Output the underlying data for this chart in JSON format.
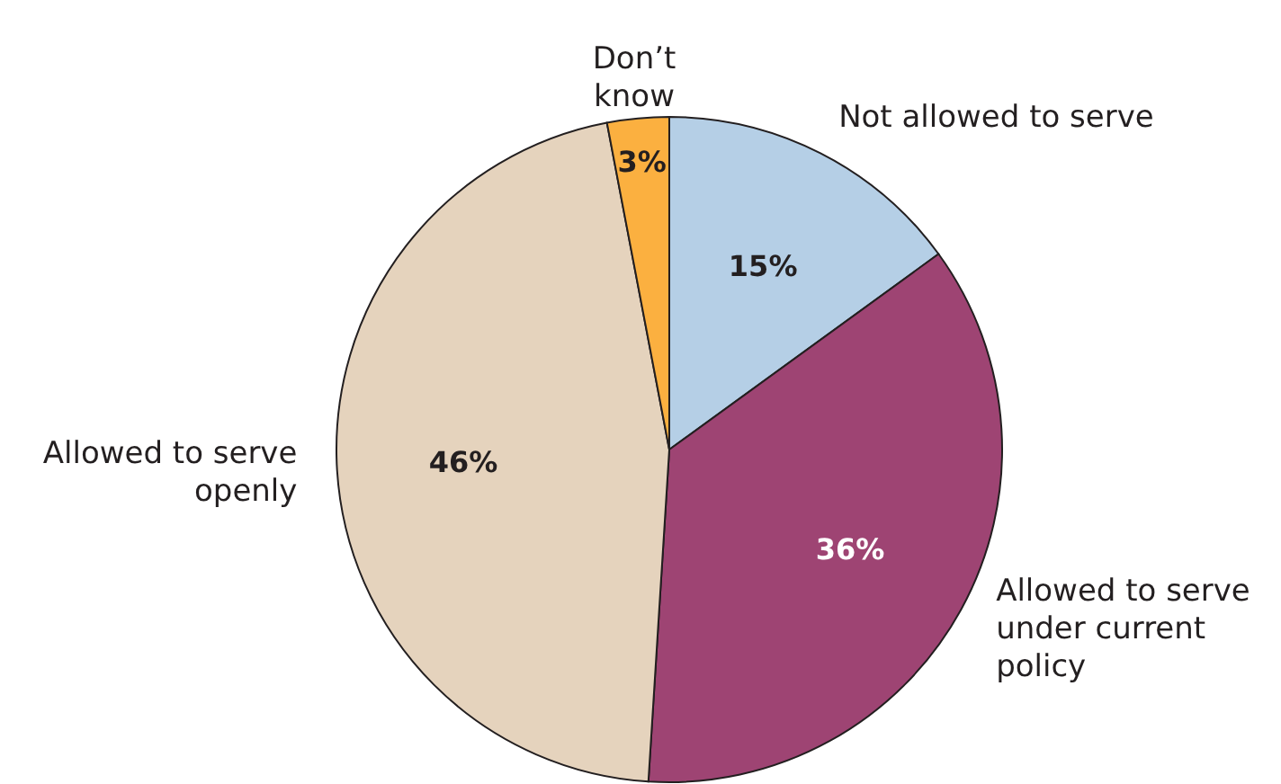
{
  "chart_data": {
    "type": "pie",
    "categories": [
      "Not allowed to serve",
      "Allowed to serve\nunder current\npolicy",
      "Allowed to serve\nopenly",
      "Don’t\nknow"
    ],
    "values": [
      15,
      36,
      46,
      3
    ],
    "colors": [
      "#b5cfe6",
      "#9e4473",
      "#e5d3bd",
      "#fbb040"
    ],
    "value_labels": [
      "15%",
      "36%",
      "46%",
      "3%"
    ]
  }
}
